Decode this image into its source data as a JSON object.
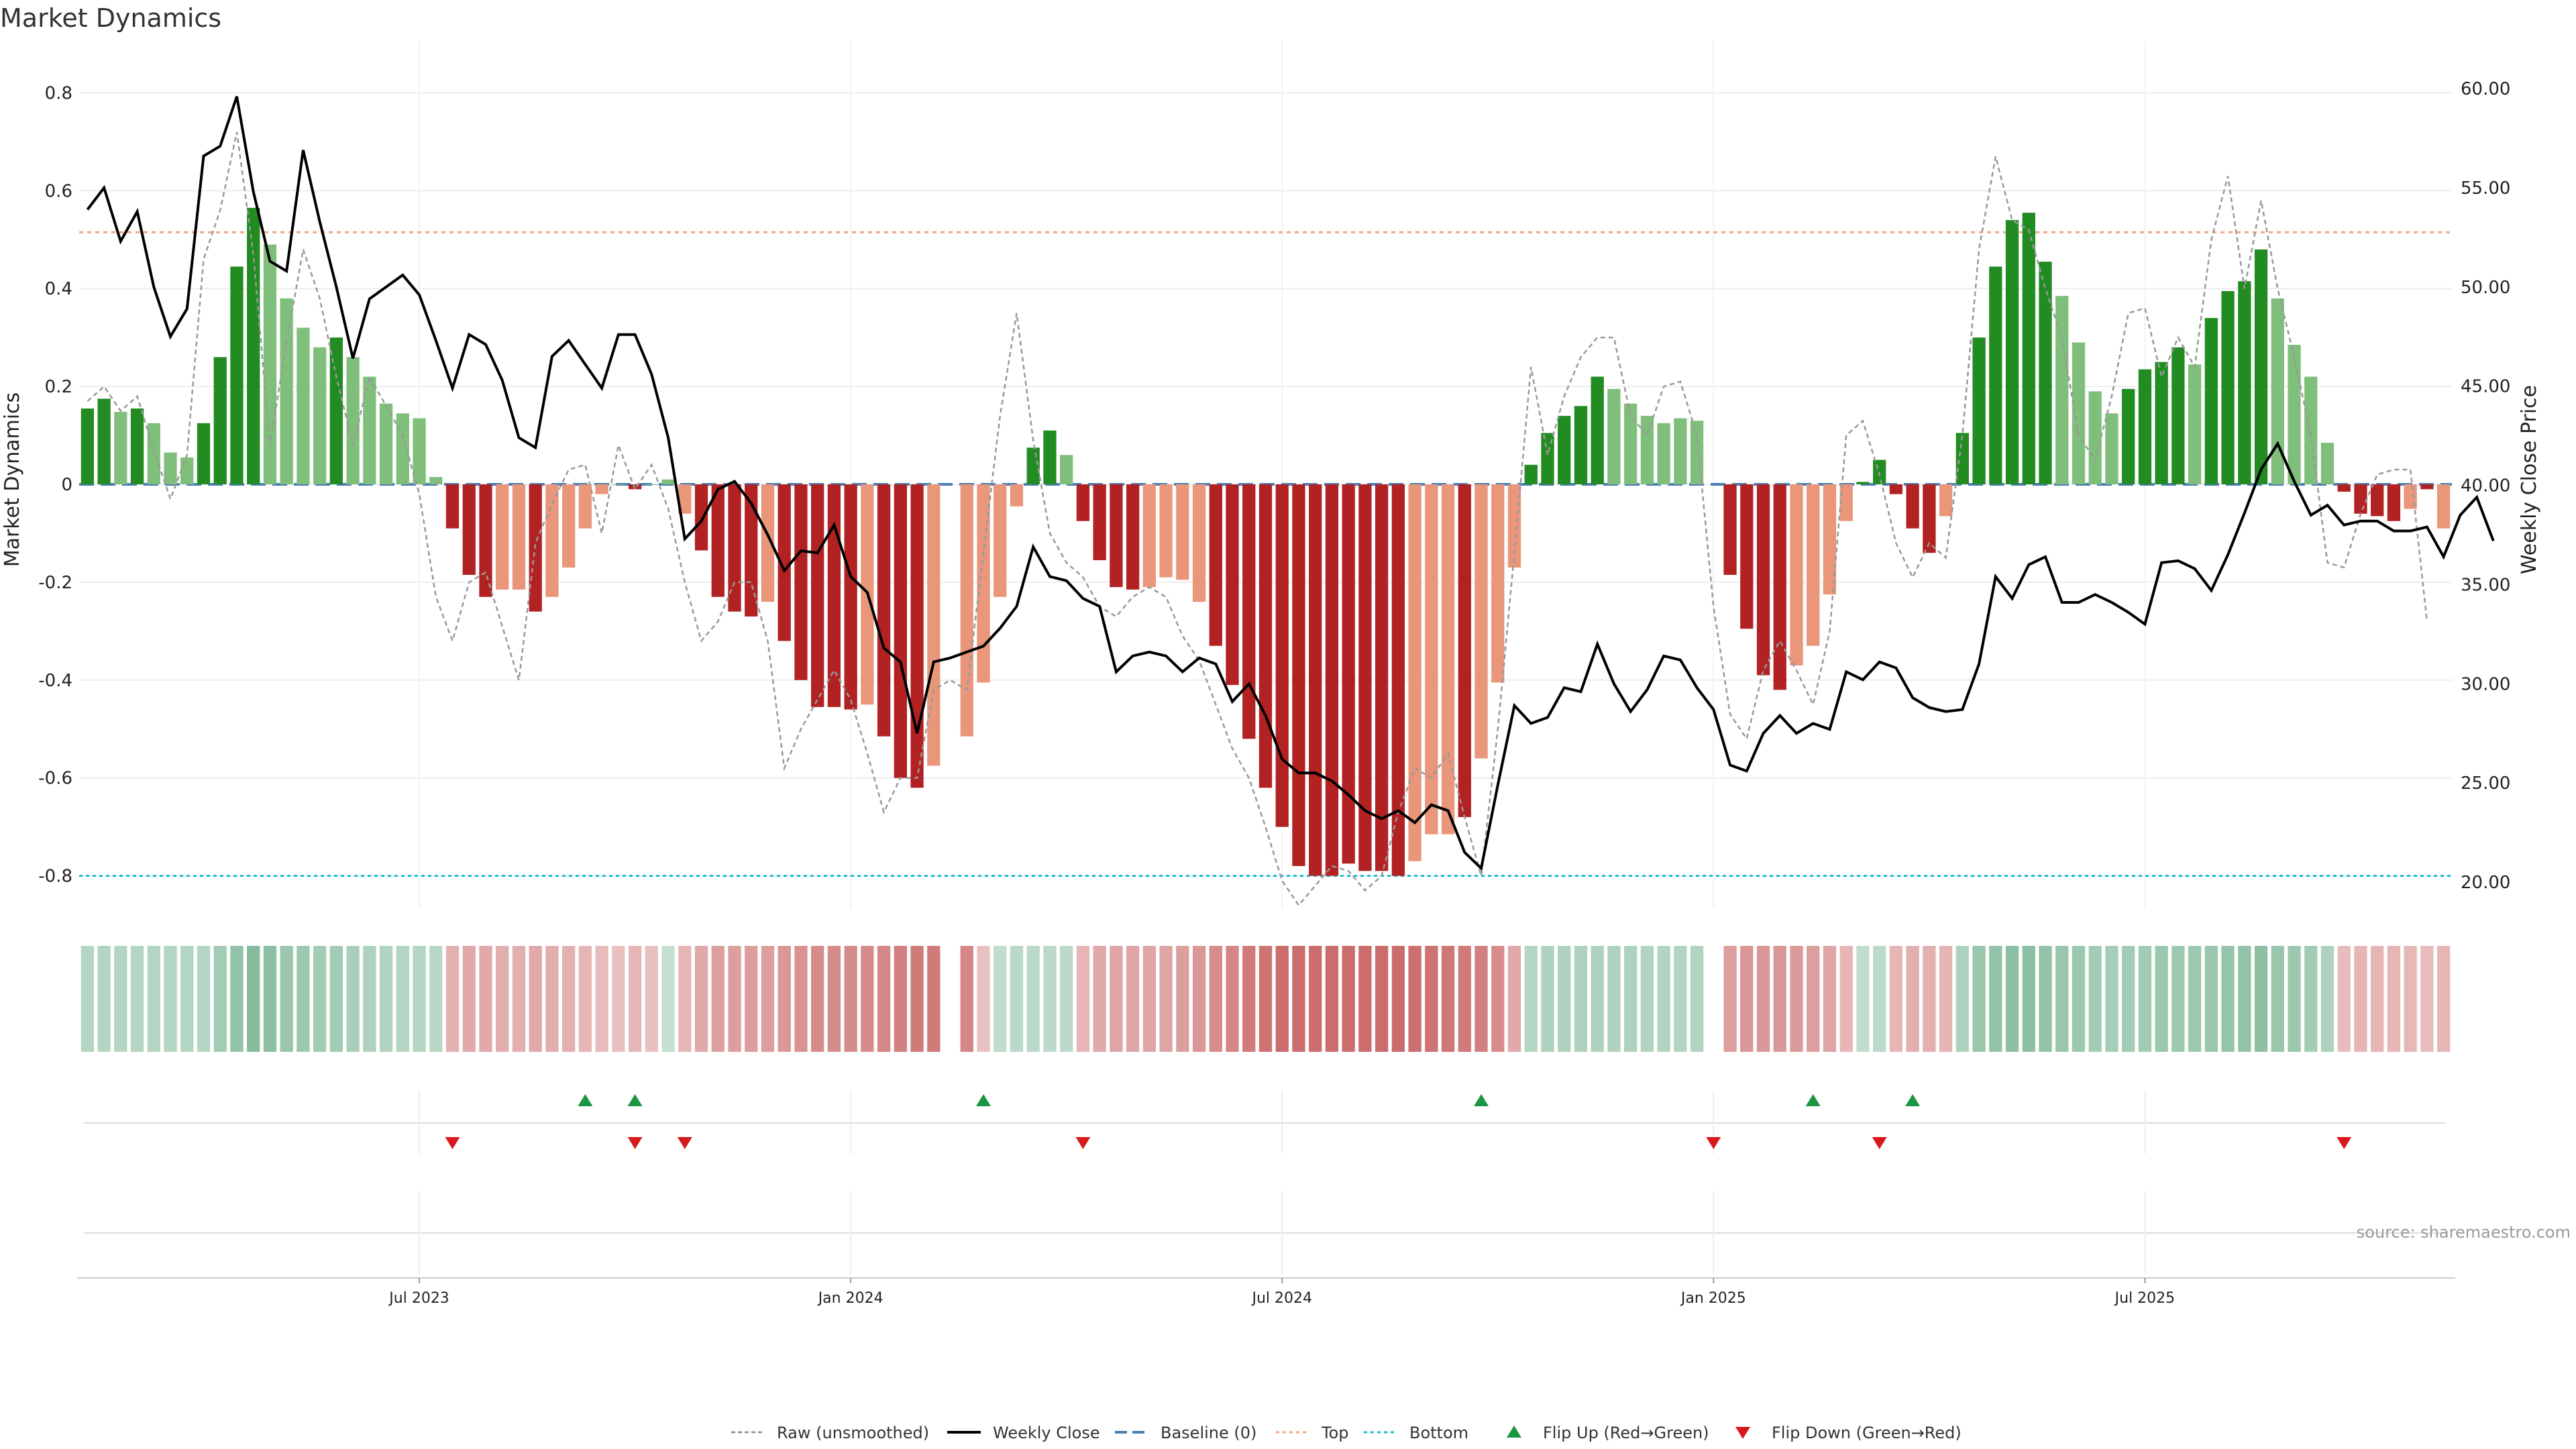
{
  "title": "Market Dynamics",
  "source": "source: sharemaestro.com",
  "legend": [
    {
      "label": "Raw (unsmoothed)",
      "style": "raw",
      "color": "#888888"
    },
    {
      "label": "Weekly Close",
      "style": "close",
      "color": "#000000"
    },
    {
      "label": "Baseline (0)",
      "style": "baseline",
      "color": "#1f77b4"
    },
    {
      "label": "Top",
      "style": "top",
      "color": "#f0a070"
    },
    {
      "label": "Bottom",
      "style": "bottom",
      "color": "#17becf"
    },
    {
      "label": "Flip Up (Red→Green)",
      "style": "flipup",
      "color": "#1a9641"
    },
    {
      "label": "Flip Down (Green→Red)",
      "style": "flipdown",
      "color": "#d7191c"
    }
  ],
  "colors": {
    "strong_green": "#228B22",
    "light_green": "#7fbf7b",
    "strong_red": "#b22222",
    "light_red": "#e9967a",
    "close_line": "#000000",
    "raw_line": "#999999",
    "baseline": "#4a7fb5",
    "top": "#f4a582",
    "bottom": "#17becf",
    "flip_up": "#1a9641",
    "flip_down": "#d7191c"
  },
  "chart_data": {
    "type": "bar",
    "title": "Market Dynamics",
    "ylabel": "Market Dynamics",
    "y2label": "Weekly Close Price",
    "ylim": [
      -0.87,
      0.87
    ],
    "y2lim": [
      18.5,
      62
    ],
    "yticks": [
      "0.8",
      "0.6",
      "0.4",
      "0.2",
      "0",
      "-0.2",
      "-0.4",
      "-0.6",
      "-0.8"
    ],
    "y2ticks": [
      "60.00",
      "55.00",
      "50.00",
      "45.00",
      "40.00",
      "35.00",
      "30.00",
      "25.00",
      "20.00"
    ],
    "xticks": [
      "Jul 2023",
      "Jan 2024",
      "Jul 2024",
      "Jan 2025",
      "Jul 2025"
    ],
    "xtick_week_index": [
      20,
      46,
      72,
      98,
      124
    ],
    "top_level": 0.515,
    "bottom_level": -0.8,
    "baseline": 0,
    "grid": true,
    "legend_position": "bottom-center",
    "series": [
      {
        "name": "Market Dynamics",
        "values": [
          0.155,
          0.175,
          0.148,
          0.155,
          0.125,
          0.065,
          0.055,
          0.125,
          0.26,
          0.445,
          0.565,
          0.49,
          0.38,
          0.32,
          0.28,
          0.3,
          0.26,
          0.22,
          0.165,
          0.145,
          0.135,
          0.015,
          -0.09,
          -0.185,
          -0.23,
          -0.215,
          -0.215,
          -0.26,
          -0.23,
          -0.17,
          -0.09,
          -0.02,
          0,
          -0.01,
          0,
          0.01,
          -0.06,
          -0.135,
          -0.23,
          -0.26,
          -0.27,
          -0.24,
          -0.32,
          -0.4,
          -0.455,
          -0.455,
          -0.46,
          -0.45,
          -0.515,
          -0.6,
          -0.62,
          -0.575,
          null,
          -0.515,
          -0.405,
          -0.23,
          -0.045,
          0.075,
          0.11,
          0.06,
          -0.075,
          -0.155,
          -0.21,
          -0.215,
          -0.21,
          -0.19,
          -0.195,
          -0.24,
          -0.33,
          -0.41,
          -0.52,
          -0.62,
          -0.7,
          -0.78,
          -0.8,
          -0.8,
          -0.775,
          -0.79,
          -0.79,
          -0.8,
          -0.77,
          -0.715,
          -0.715,
          -0.68,
          -0.56,
          -0.405,
          -0.17,
          0.04,
          0.105,
          0.14,
          0.16,
          0.22,
          0.195,
          0.165,
          0.14,
          0.125,
          0.135,
          0.13,
          null,
          -0.185,
          -0.295,
          -0.39,
          -0.42,
          -0.37,
          -0.33,
          -0.225,
          -0.075,
          0.005,
          0.05,
          -0.02,
          -0.09,
          -0.14,
          -0.065,
          0.105,
          0.3,
          0.445,
          0.54,
          0.555,
          0.455,
          0.385,
          0.29,
          0.19,
          0.145,
          0.195,
          0.235,
          0.25,
          0.28,
          0.245,
          0.34,
          0.395,
          0.415,
          0.48,
          0.38,
          0.285,
          0.22,
          0.085,
          -0.015,
          -0.06,
          -0.065,
          -0.075,
          -0.05,
          -0.01,
          -0.09
        ]
      },
      {
        "name": "Weekly Close",
        "values": [
          53.9,
          55.0,
          52.3,
          53.8,
          50.0,
          47.5,
          48.9,
          56.6,
          57.1,
          59.6,
          54.8,
          51.3,
          50.8,
          56.9,
          53.3,
          50.0,
          46.4,
          49.4,
          50.0,
          50.6,
          49.6,
          47.3,
          44.9,
          47.6,
          47.1,
          45.3,
          42.4,
          41.9,
          46.5,
          47.3,
          46.1,
          44.9,
          47.6,
          47.6,
          45.6,
          42.4,
          37.3,
          38.2,
          39.8,
          40.2,
          39.1,
          37.5,
          35.7,
          36.7,
          36.6,
          38.0,
          35.4,
          34.6,
          31.8,
          31.1,
          27.5,
          31.1,
          31.3,
          31.6,
          31.9,
          32.8,
          33.9,
          36.9,
          35.4,
          35.2,
          34.3,
          33.9,
          30.6,
          31.4,
          31.6,
          31.4,
          30.6,
          31.3,
          31.0,
          29.1,
          30.0,
          28.4,
          26.2,
          25.5,
          25.5,
          25.1,
          24.4,
          23.6,
          23.2,
          23.6,
          23.0,
          23.9,
          23.6,
          21.5,
          20.7,
          24.9,
          28.9,
          28.0,
          28.3,
          29.8,
          29.6,
          32.0,
          30.0,
          28.6,
          29.7,
          31.4,
          31.2,
          29.8,
          28.7,
          25.9,
          25.6,
          27.5,
          28.4,
          27.5,
          28.0,
          27.7,
          30.6,
          30.2,
          31.1,
          30.8,
          29.3,
          28.8,
          28.6,
          28.7,
          31.0,
          35.4,
          34.3,
          36.0,
          36.4,
          34.1,
          34.1,
          34.5,
          34.1,
          33.6,
          33.0,
          36.1,
          36.2,
          35.8,
          34.7,
          36.5,
          38.6,
          40.8,
          42.1,
          40.2,
          38.5,
          39.0,
          38.0,
          38.2,
          38.2,
          37.7,
          37.7,
          37.9,
          36.4,
          38.5,
          39.4,
          37.2
        ]
      },
      {
        "name": "Raw (unsmoothed)",
        "values": [
          0.17,
          0.2,
          0.15,
          0.18,
          0.07,
          -0.03,
          0.06,
          0.46,
          0.56,
          0.72,
          0.47,
          0.08,
          0.29,
          0.48,
          0.38,
          0.22,
          0.08,
          0.22,
          0.16,
          0.1,
          -0.02,
          -0.23,
          -0.32,
          -0.2,
          -0.18,
          -0.29,
          -0.4,
          -0.12,
          -0.04,
          0.03,
          0.04,
          -0.1,
          0.08,
          -0.01,
          0.04,
          -0.05,
          -0.2,
          -0.32,
          -0.28,
          -0.2,
          -0.2,
          -0.32,
          -0.58,
          -0.5,
          -0.44,
          -0.38,
          -0.44,
          -0.55,
          -0.67,
          -0.6,
          -0.6,
          -0.42,
          -0.4,
          -0.42,
          -0.14,
          0.14,
          0.35,
          0.09,
          -0.1,
          -0.16,
          -0.19,
          -0.25,
          -0.27,
          -0.23,
          -0.21,
          -0.23,
          -0.31,
          -0.36,
          -0.45,
          -0.54,
          -0.6,
          -0.7,
          -0.81,
          -0.86,
          -0.82,
          -0.78,
          -0.79,
          -0.83,
          -0.8,
          -0.67,
          -0.58,
          -0.6,
          -0.55,
          -0.68,
          -0.8,
          -0.5,
          -0.14,
          0.24,
          0.06,
          0.18,
          0.26,
          0.3,
          0.3,
          0.14,
          0.1,
          0.2,
          0.21,
          0.1,
          -0.25,
          -0.47,
          -0.52,
          -0.38,
          -0.32,
          -0.38,
          -0.45,
          -0.3,
          0.1,
          0.13,
          0.02,
          -0.12,
          -0.19,
          -0.12,
          -0.15,
          0.1,
          0.48,
          0.67,
          0.54,
          0.52,
          0.4,
          0.3,
          0.1,
          0.05,
          0.18,
          0.35,
          0.36,
          0.22,
          0.3,
          0.24,
          0.5,
          0.63,
          0.4,
          0.58,
          0.4,
          0.26,
          0.1,
          -0.16,
          -0.17,
          -0.06,
          0.02,
          0.03,
          0.03,
          -0.28
        ]
      }
    ],
    "bar_intensity_levels": [
      "light",
      "strong"
    ],
    "bar_intensity": [
      1,
      1,
      0,
      1,
      0,
      0,
      0,
      1,
      1,
      1,
      1,
      0,
      0,
      0,
      0,
      1,
      0,
      0,
      0,
      0,
      0,
      0,
      1,
      1,
      1,
      0,
      0,
      1,
      0,
      0,
      0,
      0,
      0,
      1,
      0,
      0,
      0,
      1,
      1,
      1,
      1,
      0,
      1,
      1,
      1,
      1,
      1,
      0,
      1,
      1,
      1,
      0,
      null,
      0,
      0,
      0,
      0,
      1,
      1,
      0,
      1,
      1,
      1,
      1,
      0,
      0,
      0,
      0,
      1,
      1,
      1,
      1,
      1,
      1,
      1,
      1,
      1,
      1,
      1,
      1,
      0,
      0,
      0,
      1,
      0,
      0,
      0,
      1,
      1,
      1,
      1,
      1,
      0,
      0,
      0,
      0,
      0,
      0,
      null,
      1,
      1,
      1,
      1,
      0,
      0,
      0,
      0,
      1,
      1,
      1,
      1,
      1,
      0,
      1,
      1,
      1,
      1,
      1,
      1,
      0,
      0,
      0,
      0,
      1,
      1,
      1,
      1,
      0,
      1,
      1,
      1,
      1,
      0,
      0,
      0,
      0,
      1,
      1,
      1,
      1,
      0,
      1
    ],
    "regime_strip": {
      "description_free": true,
      "values": [
        0.25,
        0.25,
        0.25,
        0.25,
        0.25,
        0.25,
        0.25,
        0.25,
        0.4,
        0.55,
        0.65,
        0.6,
        0.5,
        0.45,
        0.4,
        0.4,
        0.35,
        0.3,
        0.28,
        0.25,
        0.25,
        0.22,
        -0.25,
        -0.3,
        -0.3,
        -0.28,
        -0.28,
        -0.3,
        -0.28,
        -0.25,
        -0.2,
        -0.15,
        -0.1,
        -0.2,
        -0.1,
        0.1,
        -0.2,
        -0.3,
        -0.4,
        -0.4,
        -0.4,
        -0.4,
        -0.45,
        -0.5,
        -0.55,
        -0.55,
        -0.55,
        -0.55,
        -0.6,
        -0.65,
        -0.7,
        -0.7,
        null,
        -0.6,
        -0.1,
        0.15,
        0.2,
        0.2,
        0.2,
        0.18,
        -0.2,
        -0.3,
        -0.35,
        -0.35,
        -0.35,
        -0.35,
        -0.4,
        -0.45,
        -0.55,
        -0.6,
        -0.7,
        -0.75,
        -0.8,
        -0.8,
        -0.8,
        -0.8,
        -0.8,
        -0.8,
        -0.8,
        -0.8,
        -0.78,
        -0.75,
        -0.72,
        -0.7,
        -0.65,
        -0.55,
        -0.3,
        0.25,
        0.3,
        0.3,
        0.3,
        0.3,
        0.3,
        0.3,
        0.28,
        0.27,
        0.27,
        0.27,
        null,
        -0.4,
        -0.45,
        -0.45,
        -0.45,
        -0.42,
        -0.4,
        -0.35,
        -0.2,
        0.15,
        0.18,
        -0.2,
        -0.25,
        -0.25,
        -0.22,
        0.3,
        0.5,
        0.55,
        0.6,
        0.6,
        0.55,
        0.5,
        0.45,
        0.4,
        0.38,
        0.4,
        0.42,
        0.45,
        0.45,
        0.45,
        0.5,
        0.52,
        0.55,
        0.58,
        0.5,
        0.45,
        0.4,
        0.3,
        -0.15,
        -0.2,
        -0.2,
        -0.2,
        -0.18,
        -0.15,
        -0.2
      ]
    },
    "flip_up_week_index": [
      30,
      33,
      54,
      84,
      104,
      110
    ],
    "flip_down_week_index": [
      22,
      33,
      36,
      60,
      98,
      108,
      136
    ]
  }
}
